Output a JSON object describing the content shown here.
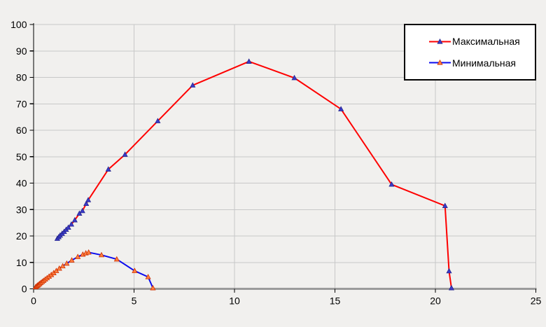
{
  "chart_data": {
    "type": "line",
    "title": "",
    "xlabel": "",
    "ylabel": "",
    "xlim": [
      0,
      25
    ],
    "ylim": [
      0,
      100
    ],
    "x_ticks": [
      0,
      5,
      10,
      15,
      20,
      25
    ],
    "y_ticks": [
      0,
      10,
      20,
      30,
      40,
      50,
      60,
      70,
      80,
      90,
      100
    ],
    "grid": true,
    "legend_position": "top-right",
    "series": [
      {
        "name": "Максимальная",
        "line_color": "#fe0000",
        "marker": "triangle-up",
        "marker_fill": "#3a3ac8",
        "marker_stroke": "#26268f",
        "points": [
          [
            1.18,
            19.0
          ],
          [
            1.25,
            19.6
          ],
          [
            1.32,
            20.2
          ],
          [
            1.42,
            20.9
          ],
          [
            1.52,
            21.6
          ],
          [
            1.62,
            22.4
          ],
          [
            1.73,
            23.2
          ],
          [
            1.88,
            24.4
          ],
          [
            2.05,
            26.0
          ],
          [
            2.28,
            28.5
          ],
          [
            2.43,
            29.5
          ],
          [
            2.62,
            32.2
          ],
          [
            2.72,
            33.6
          ],
          [
            3.72,
            45.2
          ],
          [
            4.55,
            50.8
          ],
          [
            6.18,
            63.5
          ],
          [
            7.92,
            77.0
          ],
          [
            10.72,
            86.0
          ],
          [
            12.98,
            79.8
          ],
          [
            15.3,
            68.0
          ],
          [
            17.82,
            39.5
          ],
          [
            20.48,
            31.4
          ],
          [
            20.68,
            6.7
          ],
          [
            20.8,
            0.3
          ]
        ]
      },
      {
        "name": "Минимальная",
        "line_color": "#0b0bee",
        "marker": "triangle-up",
        "marker_fill": "#ff8040",
        "marker_stroke": "#d03000",
        "points": [
          [
            0.1,
            0.7
          ],
          [
            0.15,
            1.0
          ],
          [
            0.2,
            1.3
          ],
          [
            0.25,
            1.6
          ],
          [
            0.3,
            1.9
          ],
          [
            0.36,
            2.3
          ],
          [
            0.43,
            2.7
          ],
          [
            0.5,
            3.1
          ],
          [
            0.58,
            3.6
          ],
          [
            0.67,
            4.1
          ],
          [
            0.77,
            4.7
          ],
          [
            0.88,
            5.3
          ],
          [
            1.0,
            6.0
          ],
          [
            1.13,
            6.8
          ],
          [
            1.28,
            7.7
          ],
          [
            1.45,
            8.6
          ],
          [
            1.65,
            9.6
          ],
          [
            1.9,
            10.8
          ],
          [
            2.2,
            12.1
          ],
          [
            2.45,
            13.0
          ],
          [
            2.6,
            13.5
          ],
          [
            2.74,
            13.8
          ],
          [
            3.38,
            12.8
          ],
          [
            4.14,
            11.2
          ],
          [
            5.03,
            6.8
          ],
          [
            5.7,
            4.5
          ],
          [
            5.94,
            0.3
          ]
        ]
      }
    ]
  },
  "colors": {
    "background": "#f1f0ee",
    "gridline": "#c8c8c8",
    "x_axis_line": "#9b9b9b",
    "y_axis_line": "#000000",
    "tick_label": "#000000",
    "legend_background": "#ffffff",
    "legend_border": "#000000"
  }
}
